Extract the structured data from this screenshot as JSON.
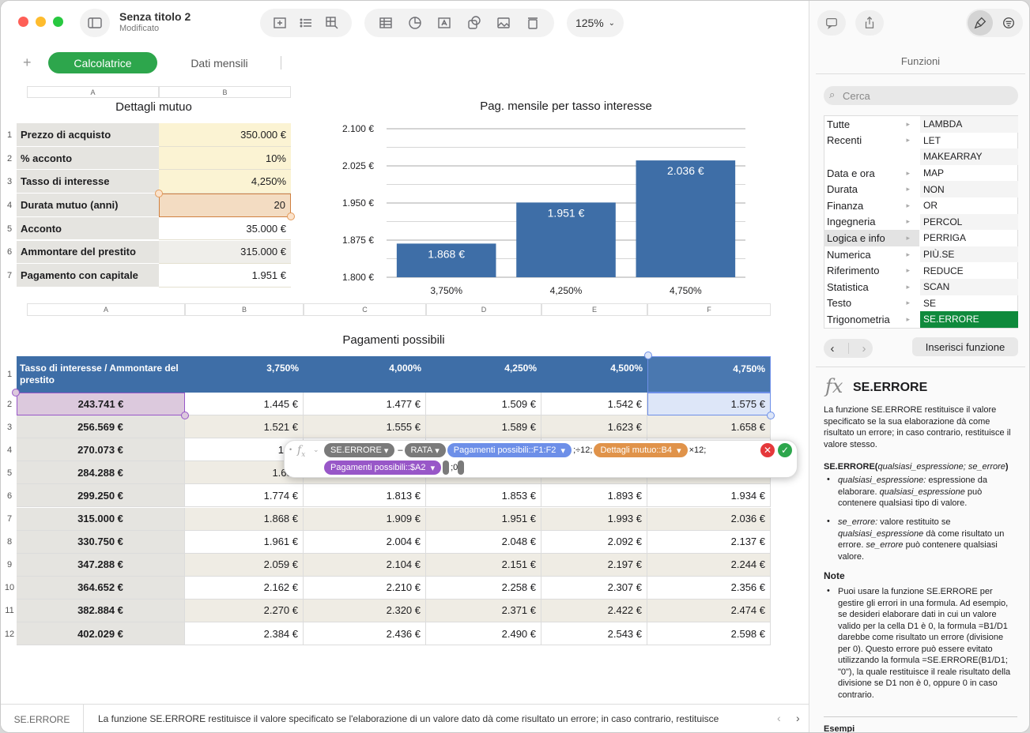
{
  "window": {
    "title": "Senza titolo 2",
    "subtitle": "Modificato",
    "zoom": "125%"
  },
  "tabs": [
    {
      "label": "Calcolatrice"
    },
    {
      "label": "Dati mensili"
    }
  ],
  "mutuo": {
    "title": "Dettagli mutuo",
    "cols": [
      "A",
      "B"
    ],
    "rows": [
      {
        "n": "1",
        "label": "Prezzo di acquisto",
        "value": "350.000 €"
      },
      {
        "n": "2",
        "label": "% acconto",
        "value": "10%"
      },
      {
        "n": "3",
        "label": "Tasso di interesse",
        "value": "4,250%"
      },
      {
        "n": "4",
        "label": "Durata mutuo (anni)",
        "value": "20"
      },
      {
        "n": "5",
        "label": "Acconto",
        "value": "35.000 €"
      },
      {
        "n": "6",
        "label": "Ammontare del prestito",
        "value": "315.000 €"
      },
      {
        "n": "7",
        "label": "Pagamento con capitale",
        "value": "1.951 €"
      }
    ]
  },
  "chart_data": {
    "type": "bar",
    "title": "Pag. mensile per tasso interesse",
    "categories": [
      "3,750%",
      "4,250%",
      "4,750%"
    ],
    "values": [
      1868,
      1951,
      2036
    ],
    "value_labels": [
      "1.868 €",
      "1.951 €",
      "2.036 €"
    ],
    "y_ticks": [
      "2.100 €",
      "2.025 €",
      "1.950 €",
      "1.875 €",
      "1.800 €"
    ],
    "ylim": [
      1800,
      2100
    ],
    "bar_color": "#3e6ea7"
  },
  "pagamenti": {
    "title": "Pagamenti possibili",
    "cols": [
      "A",
      "B",
      "C",
      "D",
      "E",
      "F"
    ],
    "header": [
      "Tasso di interesse / Ammontare del prestito",
      "3,750%",
      "4,000%",
      "4,250%",
      "4,500%",
      "4,750%"
    ],
    "rows": [
      {
        "n": "2",
        "cells": [
          "243.741 €",
          "1.445 €",
          "1.477 €",
          "1.509 €",
          "1.542 €",
          "1.575 €"
        ]
      },
      {
        "n": "3",
        "cells": [
          "256.569 €",
          "1.521 €",
          "1.555 €",
          "1.589 €",
          "1.623 €",
          "1.658 €"
        ]
      },
      {
        "n": "4",
        "cells": [
          "270.073 €",
          "1.60",
          "",
          "",
          "",
          ""
        ]
      },
      {
        "n": "5",
        "cells": [
          "284.288 €",
          "1.688",
          "",
          "",
          "",
          ""
        ]
      },
      {
        "n": "6",
        "cells": [
          "299.250 €",
          "1.774 €",
          "1.813 €",
          "1.853 €",
          "1.893 €",
          "1.934 €"
        ]
      },
      {
        "n": "7",
        "cells": [
          "315.000 €",
          "1.868 €",
          "1.909 €",
          "1.951 €",
          "1.993 €",
          "2.036 €"
        ]
      },
      {
        "n": "8",
        "cells": [
          "330.750 €",
          "1.961 €",
          "2.004 €",
          "2.048 €",
          "2.092 €",
          "2.137 €"
        ]
      },
      {
        "n": "9",
        "cells": [
          "347.288 €",
          "2.059 €",
          "2.104 €",
          "2.151 €",
          "2.197 €",
          "2.244 €"
        ]
      },
      {
        "n": "10",
        "cells": [
          "364.652 €",
          "2.162 €",
          "2.210 €",
          "2.258 €",
          "2.307 €",
          "2.356 €"
        ]
      },
      {
        "n": "11",
        "cells": [
          "382.884 €",
          "2.270 €",
          "2.320 €",
          "2.371 €",
          "2.422 €",
          "2.474 €"
        ]
      },
      {
        "n": "12",
        "cells": [
          "402.029 €",
          "2.384 €",
          "2.436 €",
          "2.490 €",
          "2.543 €",
          "2.598 €"
        ]
      }
    ]
  },
  "formula": {
    "fn1": "SE.ERRORE",
    "minus": "–",
    "fn2": "RATA",
    "ref1": "Pagamenti possibili::F1:F2",
    "sep1": ";÷12;",
    "ref2": "Dettagli mutuo::B4",
    "sep2": "×12;",
    "ref3": "Pagamenti possibili::$A2",
    "tail": ";0"
  },
  "statusbar": {
    "fn": "SE.ERRORE",
    "text": "La funzione SE.ERRORE restituisce il valore specificato se l'elaborazione di un valore dato dà come risultato un errore; in caso contrario, restituisce"
  },
  "sidebar": {
    "title": "Funzioni",
    "search_placeholder": "Cerca",
    "categories": [
      "Tutte",
      "Recenti",
      "",
      "Data e ora",
      "Durata",
      "Finanza",
      "Ingegneria",
      "Logica e info",
      "Numerica",
      "Riferimento",
      "Statistica",
      "Testo",
      "Trigonometria"
    ],
    "functions": [
      "LAMBDA",
      "LET",
      "MAKEARRAY",
      "MAP",
      "NON",
      "OR",
      "PERCOL",
      "PERRIGA",
      "PIÙ.SE",
      "REDUCE",
      "SCAN",
      "SE",
      "SE.ERRORE"
    ],
    "insert_button": "Inserisci funzione",
    "fn_symbol": "fx",
    "fn_name": "SE.ERRORE",
    "description": "La funzione SE.ERRORE restituisce il valore specificato se la sua elaborazione dà come risultato un errore; in caso contrario, restituisce il valore stesso.",
    "syntax_fn": "SE.ERRORE(",
    "syntax_args": "qualsiasi_espressione; se_errore",
    "syntax_close": ")",
    "bullet1_arg": "qualsiasi_espressione:",
    "bullet1_text": " espressione da elaborare. ",
    "bullet1_arg2": "qualsiasi_espressione",
    "bullet1_text2": " può contenere qualsiasi tipo di valore.",
    "bullet2_arg": "se_errore:",
    "bullet2_text": " valore restituito se ",
    "bullet2_arg2": "qualsiasi_espressione",
    "bullet2_text2": " dà come risultato un errore. ",
    "bullet2_arg3": "se_errore",
    "bullet2_text3": " può contenere qualsiasi valore.",
    "note_title": "Note",
    "note_text": "Puoi usare la funzione SE.ERRORE per gestire gli errori in una formula. Ad esempio, se desideri elaborare dati in cui un valore valido per la cella D1 è 0, la formula =B1/D1 darebbe come risultato un errore (divisione per 0). Questo errore può essere evitato utilizzando la formula =SE.ERRORE(B1/D1; \"0\"), la quale restituisce il reale risultato della divisione se D1 non è 0, oppure 0 in caso contrario.",
    "examples_title": "Esempi"
  }
}
